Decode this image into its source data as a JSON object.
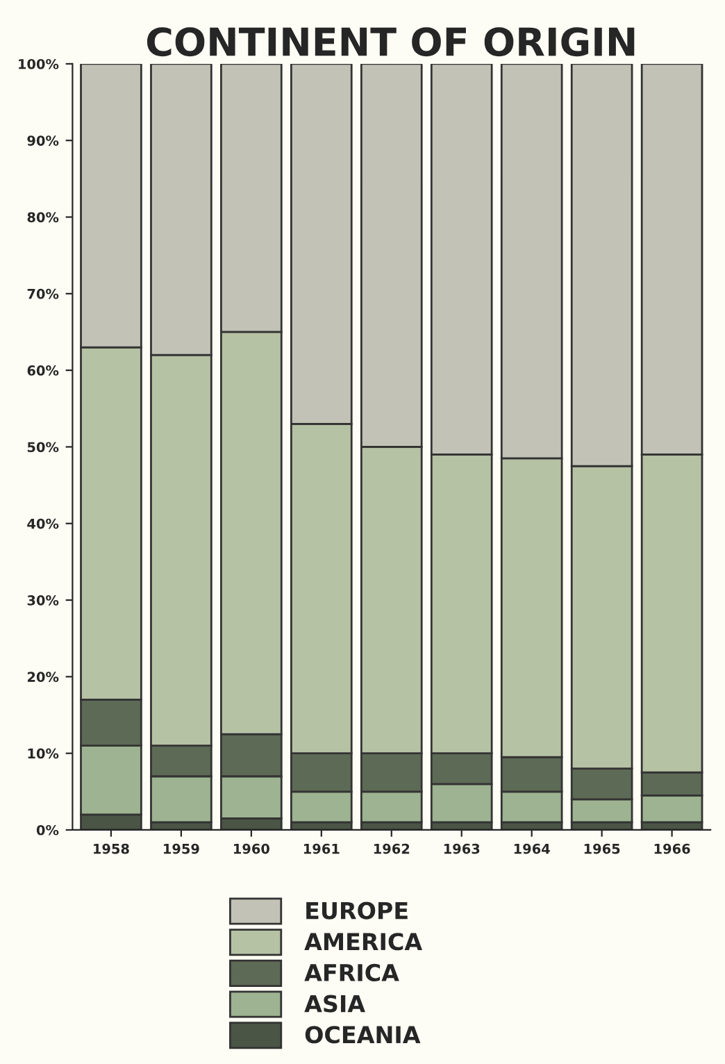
{
  "chart_data": {
    "type": "bar",
    "title": "CONTINENT OF ORIGIN",
    "stacked": true,
    "categories": [
      "1958",
      "1959",
      "1960",
      "1961",
      "1962",
      "1963",
      "1964",
      "1965",
      "1966"
    ],
    "series": [
      {
        "name": "OCEANIA",
        "color": "#4a5546",
        "values": [
          2,
          1,
          1.5,
          1,
          1,
          1,
          1,
          1,
          1
        ]
      },
      {
        "name": "ASIA",
        "color": "#9db391",
        "values": [
          9,
          6,
          5.5,
          4,
          4,
          5,
          4,
          3,
          3.5
        ]
      },
      {
        "name": "AFRICA",
        "color": "#5d6a56",
        "values": [
          6,
          4,
          5.5,
          5,
          5,
          4,
          4.5,
          4,
          3
        ]
      },
      {
        "name": "AMERICA",
        "color": "#b6c2a4",
        "values": [
          46,
          51,
          52.5,
          43,
          40,
          39,
          39,
          39.5,
          41.5
        ]
      },
      {
        "name": "EUROPE",
        "color": "#c2c3b6",
        "values": [
          37,
          38,
          35,
          47,
          50,
          51,
          51.5,
          52.5,
          51
        ]
      }
    ],
    "ylim": [
      0,
      100
    ],
    "yticks": [
      {
        "value": 0,
        "label": "0%"
      },
      {
        "value": 10,
        "label": "10%"
      },
      {
        "value": 20,
        "label": "20%"
      },
      {
        "value": 30,
        "label": "30%"
      },
      {
        "value": 40,
        "label": "40%"
      },
      {
        "value": 50,
        "label": "50%"
      },
      {
        "value": 60,
        "label": "60%"
      },
      {
        "value": 70,
        "label": "70%"
      },
      {
        "value": 80,
        "label": "80%"
      },
      {
        "value": 90,
        "label": "90%"
      },
      {
        "value": 100,
        "label": "100%"
      }
    ],
    "grid": false,
    "legend": "bottom"
  }
}
